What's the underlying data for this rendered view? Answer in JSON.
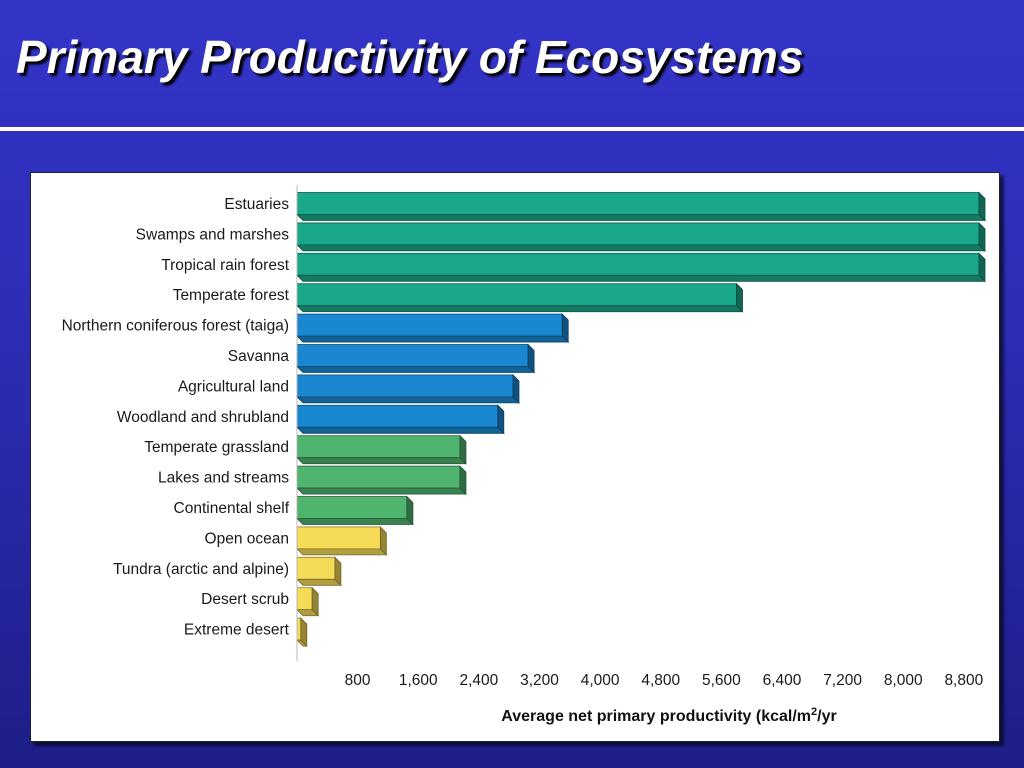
{
  "slide": {
    "title": "Primary Productivity of Ecosystems"
  },
  "chart_data": {
    "type": "bar",
    "orientation": "horizontal",
    "title": "",
    "xlabel_main": "Average net primary productivity (kcal/m",
    "xlabel_sup": "2",
    "xlabel_tail": "/yr",
    "ylabel": "",
    "xlim": [
      0,
      9000
    ],
    "x_ticks": [
      800,
      1600,
      2400,
      3200,
      4000,
      4800,
      5600,
      6400,
      7200,
      8000,
      8800
    ],
    "x_tick_labels": [
      "800",
      "1,600",
      "2,400",
      "3,200",
      "4,000",
      "4,800",
      "5,600",
      "6,400",
      "7,200",
      "8,000",
      "8,800"
    ],
    "grid": false,
    "legend": "none",
    "categories": [
      "Estuaries",
      "Swamps and marshes",
      "Tropical rain forest",
      "Temperate forest",
      "Northern coniferous forest (taiga)",
      "Savanna",
      "Agricultural land",
      "Woodland and shrubland",
      "Temperate grassland",
      "Lakes and streams",
      "Continental shelf",
      "Open ocean",
      "Tundra (arctic and alpine)",
      "Desert scrub",
      "Extreme desert"
    ],
    "values": [
      9000,
      9000,
      9000,
      5800,
      3500,
      3050,
      2850,
      2650,
      2150,
      2150,
      1450,
      1100,
      500,
      200,
      50
    ],
    "bar_colors": [
      "#1aa88a",
      "#1aa88a",
      "#1aa88a",
      "#1aa88a",
      "#1a88d0",
      "#1a88d0",
      "#1a88d0",
      "#1a88d0",
      "#4fb46e",
      "#4fb46e",
      "#4fb46e",
      "#f6dc56",
      "#f6dc56",
      "#f6dc56",
      "#f6dc56"
    ]
  }
}
